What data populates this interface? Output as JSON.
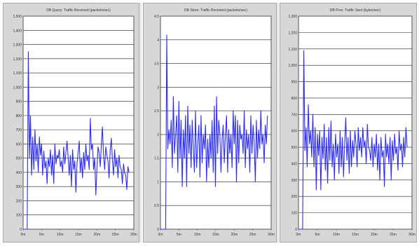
{
  "chart_data": [
    {
      "type": "line",
      "title": "DB Query: Traffic Received (packets/sec)",
      "ylim": [
        0,
        1500
      ],
      "yticks": [
        "0",
        "100",
        "200",
        "300",
        "400",
        "500",
        "600",
        "700",
        "800",
        "900",
        "1,000",
        "1,100",
        "1,200",
        "1,300",
        "1,400",
        "1,500"
      ],
      "xlim": [
        0,
        30
      ],
      "xticks": [
        "0m",
        "5m",
        "10m",
        "15m",
        "20m",
        "25m",
        "30m"
      ],
      "grid": true,
      "legend": "none",
      "color": "#2b2bff",
      "series": [
        {
          "x": [
            0,
            0.4,
            0.8,
            1.1,
            1.4,
            1.7,
            2.0,
            2.3,
            2.6,
            2.9,
            3.2,
            3.5,
            3.8,
            4.1,
            4.4,
            4.7,
            5.0,
            5.3,
            5.6,
            5.9,
            6.2,
            6.5,
            6.8,
            7.1,
            7.4,
            7.7,
            8.0,
            8.3,
            8.6,
            8.9,
            9.2,
            9.5,
            9.8,
            10.1,
            10.4,
            10.7,
            11.0,
            11.3,
            11.6,
            11.9,
            12.2,
            12.5,
            12.8,
            13.1,
            13.4,
            13.7,
            14.0,
            14.3,
            14.6,
            14.9,
            15.2,
            15.5,
            15.8,
            16.1,
            16.4,
            16.7,
            17.0,
            17.3,
            17.6,
            17.9,
            18.2,
            18.5,
            18.8,
            19.1,
            19.4,
            19.7,
            20.0,
            20.3,
            20.6,
            20.9,
            21.2,
            21.5,
            21.8,
            22.1,
            22.4,
            22.7,
            23.0,
            23.3,
            23.6,
            23.9,
            24.2,
            24.5,
            24.8,
            25.1,
            25.4,
            25.7,
            26.0,
            26.3,
            26.6,
            26.9,
            27.2,
            27.5,
            27.8,
            28.1,
            28.4,
            28.7
          ],
          "y": [
            0,
            0,
            0,
            0,
            1250,
            500,
            800,
            380,
            650,
            420,
            700,
            480,
            600,
            400,
            650,
            520,
            600,
            380,
            550,
            430,
            480,
            320,
            500,
            440,
            560,
            380,
            520,
            320,
            600,
            460,
            520,
            500,
            560,
            440,
            480,
            400,
            580,
            460,
            540,
            620,
            500,
            380,
            520,
            300,
            560,
            420,
            480,
            260,
            460,
            540,
            620,
            400,
            500,
            360,
            540,
            420,
            600,
            480,
            520,
            420,
            780,
            560,
            600,
            420,
            500,
            240,
            420,
            580,
            540,
            440,
            600,
            720,
            520,
            420,
            580,
            520,
            480,
            360,
            560,
            640,
            480,
            380,
            560,
            440,
            500,
            360,
            520,
            440,
            420,
            320,
            460,
            400,
            380,
            280,
            440,
            400
          ]
        }
      ]
    },
    {
      "type": "line",
      "title": "DB Store: Traffic Received (packets/sec)",
      "ylim": [
        0,
        4.5
      ],
      "yticks": [
        "0",
        "0.5",
        "1",
        "1.5",
        "2",
        "2.5",
        "3",
        "3.5",
        "4",
        "4.5"
      ],
      "xlim": [
        0,
        30
      ],
      "xticks": [
        "0m",
        "5m",
        "10m",
        "15m",
        "20m",
        "25m",
        "30m"
      ],
      "grid": true,
      "legend": "none",
      "color": "#2b2bff",
      "series": [
        {
          "x": [
            0,
            0.4,
            0.8,
            1.1,
            1.4,
            1.7,
            2.0,
            2.3,
            2.6,
            2.9,
            3.2,
            3.5,
            3.8,
            4.1,
            4.4,
            4.7,
            5.0,
            5.3,
            5.6,
            5.9,
            6.2,
            6.5,
            6.8,
            7.1,
            7.4,
            7.7,
            8.0,
            8.3,
            8.6,
            8.9,
            9.2,
            9.5,
            9.8,
            10.1,
            10.4,
            10.7,
            11.0,
            11.3,
            11.6,
            11.9,
            12.2,
            12.5,
            12.8,
            13.1,
            13.4,
            13.7,
            14.0,
            14.3,
            14.6,
            14.9,
            15.2,
            15.5,
            15.8,
            16.1,
            16.4,
            16.7,
            17.0,
            17.3,
            17.6,
            17.9,
            18.2,
            18.5,
            18.8,
            19.1,
            19.4,
            19.7,
            20.0,
            20.3,
            20.6,
            20.9,
            21.2,
            21.5,
            21.8,
            22.1,
            22.4,
            22.7,
            23.0,
            23.3,
            23.6,
            23.9,
            24.2,
            24.5,
            24.8,
            25.1,
            25.4,
            25.7,
            26.0,
            26.3,
            26.6,
            26.9,
            27.2,
            27.5,
            27.8,
            28.1,
            28.4,
            28.7,
            29.0
          ],
          "y": [
            0,
            0,
            0,
            0,
            0,
            4.1,
            1.7,
            2.1,
            1.8,
            2.3,
            1.3,
            2.8,
            1.6,
            2.0,
            2.4,
            1.2,
            2.7,
            1.5,
            2.3,
            0.9,
            2.1,
            1.5,
            2.4,
            0.9,
            2.6,
            1.6,
            2.2,
            1.3,
            2.3,
            1.7,
            1.2,
            2.5,
            1.3,
            1.8,
            2.2,
            1.1,
            2.4,
            1.4,
            2.0,
            1.7,
            2.2,
            1.0,
            1.9,
            1.3,
            2.0,
            1.5,
            2.3,
            1.2,
            2.6,
            0.9,
            2.8,
            1.6,
            2.3,
            2.0,
            1.2,
            1.9,
            2.2,
            1.4,
            2.0,
            2.4,
            1.2,
            2.1,
            1.6,
            2.0,
            1.3,
            2.5,
            1.8,
            2.4,
            1.0,
            2.3,
            1.4,
            2.2,
            1.9,
            2.0,
            1.6,
            2.5,
            1.3,
            2.1,
            1.7,
            2.0,
            1.2,
            2.4,
            1.6,
            2.2,
            1.8,
            1.0,
            2.3,
            1.5,
            2.1,
            1.7,
            2.5,
            1.8,
            2.0,
            1.4,
            2.2,
            1.8,
            2.4
          ]
        }
      ]
    },
    {
      "type": "line",
      "title": "DB Proc: Traffic Sent (bytes/sec)",
      "ylim": [
        0,
        1300
      ],
      "yticks": [
        "0",
        "100",
        "200",
        "300",
        "400",
        "500",
        "600",
        "700",
        "800",
        "900",
        "1,000",
        "1,100",
        "1,200",
        "1,300"
      ],
      "xlim": [
        0,
        30
      ],
      "xticks": [
        "0m",
        "5m",
        "10m",
        "15m",
        "20m",
        "25m",
        "30m"
      ],
      "grid": true,
      "legend": "none",
      "color": "#2b2bff",
      "series": [
        {
          "x": [
            0,
            0.4,
            0.8,
            1.1,
            1.4,
            1.7,
            2.0,
            2.3,
            2.6,
            2.9,
            3.2,
            3.5,
            3.8,
            4.1,
            4.4,
            4.7,
            5.0,
            5.3,
            5.6,
            5.9,
            6.2,
            6.5,
            6.8,
            7.1,
            7.4,
            7.7,
            8.0,
            8.3,
            8.6,
            8.9,
            9.2,
            9.5,
            9.8,
            10.1,
            10.4,
            10.7,
            11.0,
            11.3,
            11.6,
            11.9,
            12.2,
            12.5,
            12.8,
            13.1,
            13.4,
            13.7,
            14.0,
            14.3,
            14.6,
            14.9,
            15.2,
            15.5,
            15.8,
            16.1,
            16.4,
            16.7,
            17.0,
            17.3,
            17.6,
            17.9,
            18.2,
            18.5,
            18.8,
            19.1,
            19.4,
            19.7,
            20.0,
            20.3,
            20.6,
            20.9,
            21.2,
            21.5,
            21.8,
            22.1,
            22.4,
            22.7,
            23.0,
            23.3,
            23.6,
            23.9,
            24.2,
            24.5,
            24.8,
            25.1,
            25.4,
            25.7,
            26.0,
            26.3,
            26.6,
            26.9,
            27.2,
            27.5,
            27.8,
            28.1,
            28.4,
            28.7
          ],
          "y": [
            0,
            0,
            0,
            0,
            1090,
            480,
            620,
            380,
            760,
            520,
            600,
            440,
            700,
            380,
            620,
            240,
            580,
            450,
            600,
            240,
            560,
            430,
            640,
            360,
            560,
            280,
            620,
            420,
            660,
            380,
            520,
            300,
            580,
            440,
            520,
            340,
            600,
            380,
            560,
            320,
            520,
            680,
            420,
            560,
            340,
            600,
            380,
            540,
            440,
            600,
            520,
            380,
            620,
            480,
            560,
            440,
            620,
            500,
            540,
            400,
            640,
            500,
            480,
            420,
            560,
            380,
            520,
            440,
            580,
            360,
            520,
            300,
            560,
            440,
            480,
            260,
            580,
            440,
            520,
            400,
            560,
            300,
            540,
            420,
            580,
            460,
            500,
            360,
            600,
            480,
            520,
            380,
            560,
            440,
            620,
            500
          ]
        }
      ]
    }
  ]
}
